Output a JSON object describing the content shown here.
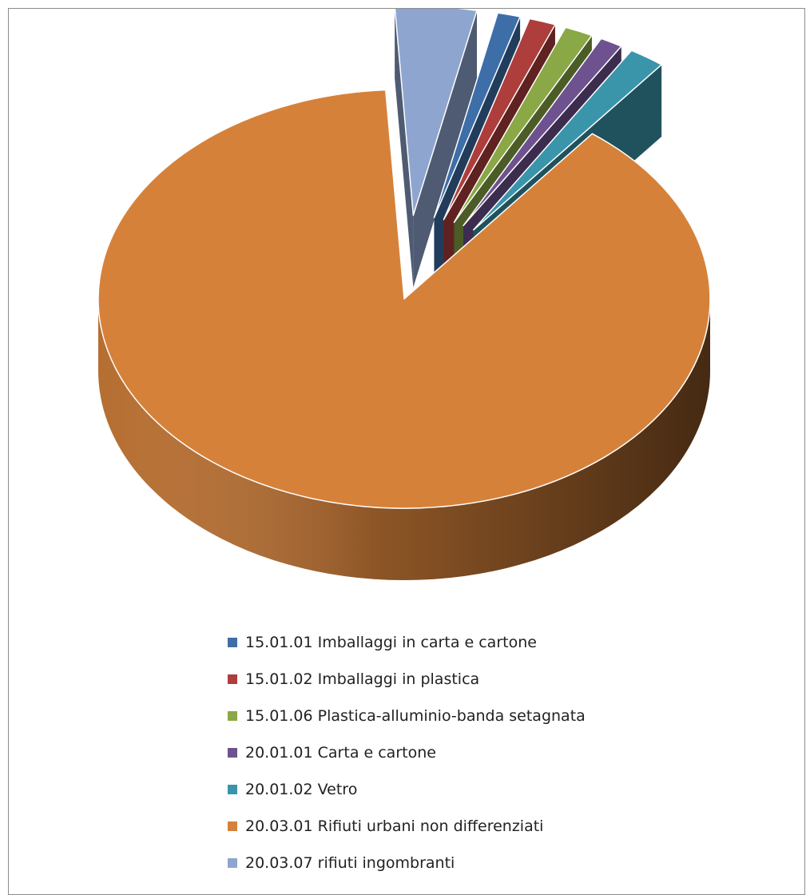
{
  "chart_data": {
    "type": "pie",
    "style": "3d",
    "exploded_slices": "all except 20.03.01",
    "categories": [
      "15.01.01 Imballaggi in carta e cartone",
      "15.01.02 Imballaggi in plastica",
      "15.01.06 Plastica-alluminio-banda setagnata",
      "20.01.01 Carta e cartone",
      "20.01.02 Vetro",
      "20.03.01 Rifiuti urbani non differenziati",
      "20.03.07 rifiuti ingombranti"
    ],
    "values": [
      1.2,
      1.4,
      1.5,
      1.2,
      1.9,
      88.5,
      4.3
    ],
    "colors": [
      "#3d6ea8",
      "#ad3e3b",
      "#8aa845",
      "#6d528f",
      "#3a95ab",
      "#d6813a",
      "#8ea6cf"
    ],
    "legend_position": "bottom"
  }
}
